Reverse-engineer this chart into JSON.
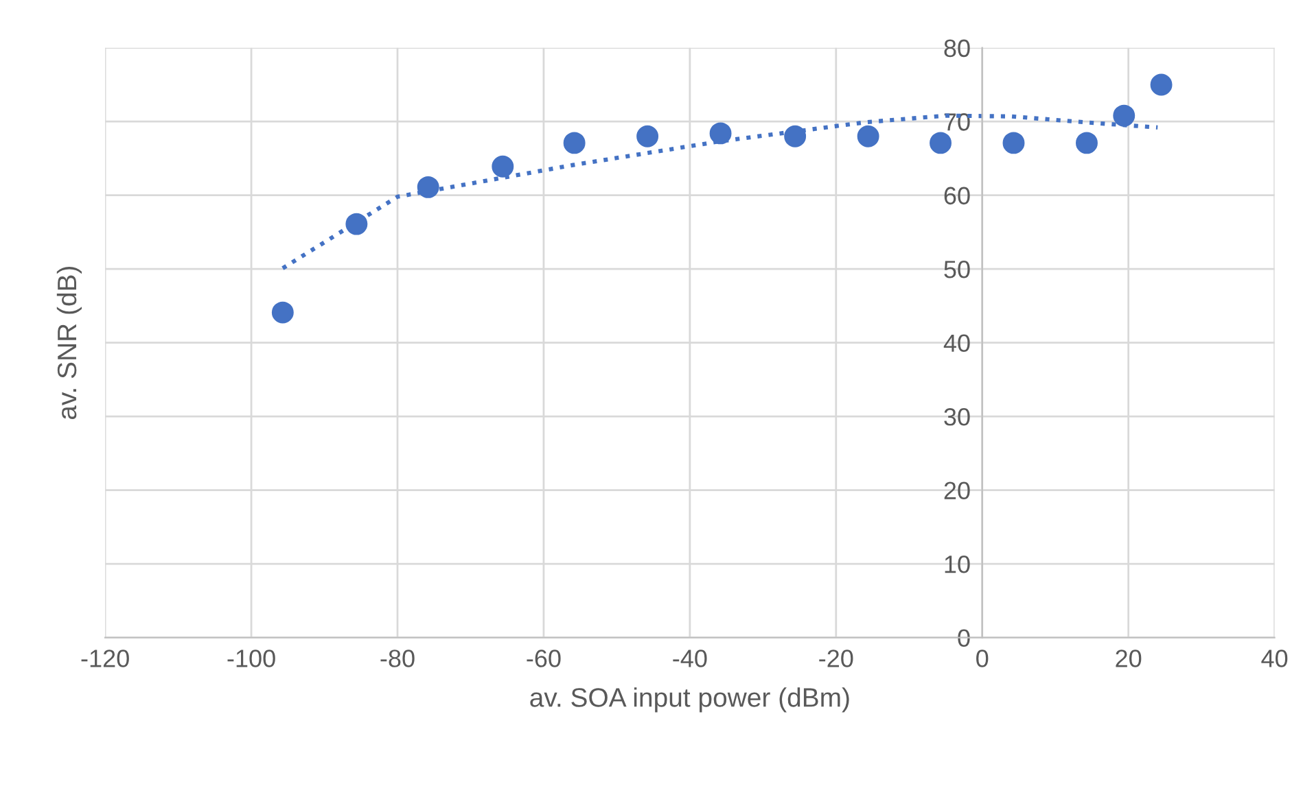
{
  "chart_data": {
    "type": "scatter",
    "xlabel": "av. SOA input power (dBm)",
    "ylabel": "av. SNR (dB)",
    "xlim": [
      -120,
      40
    ],
    "xticks": [
      -120,
      -100,
      -80,
      -60,
      -40,
      -20,
      0,
      20,
      40
    ],
    "ylim": [
      0,
      80
    ],
    "yticks": [
      0,
      10,
      20,
      30,
      40,
      50,
      60,
      70,
      80
    ],
    "grid": true,
    "legend": false,
    "series": [
      {
        "color": "#4472c4",
        "marker": "circle",
        "x": [
          -95.7,
          -85.6,
          -75.8,
          -65.6,
          -55.8,
          -45.8,
          -35.8,
          -25.6,
          -15.6,
          -5.7,
          4.3,
          14.3,
          19.4,
          24.5
        ],
        "values": [
          44.1,
          56.1,
          61.1,
          63.9,
          67.1,
          68.0,
          68.4,
          68.0,
          68.0,
          67.1,
          67.1,
          67.1,
          70.8,
          75.0
        ]
      },
      {
        "type": "line",
        "color": "#4472c4",
        "marker": "none",
        "line_style": "dotted",
        "x": [
          -95.7,
          -80,
          -56,
          -36,
          -16,
          -5,
          4,
          14,
          24
        ],
        "values": [
          50.1,
          59.8,
          64.1,
          67.3,
          69.9,
          70.8,
          70.7,
          69.9,
          69.2
        ]
      }
    ]
  }
}
